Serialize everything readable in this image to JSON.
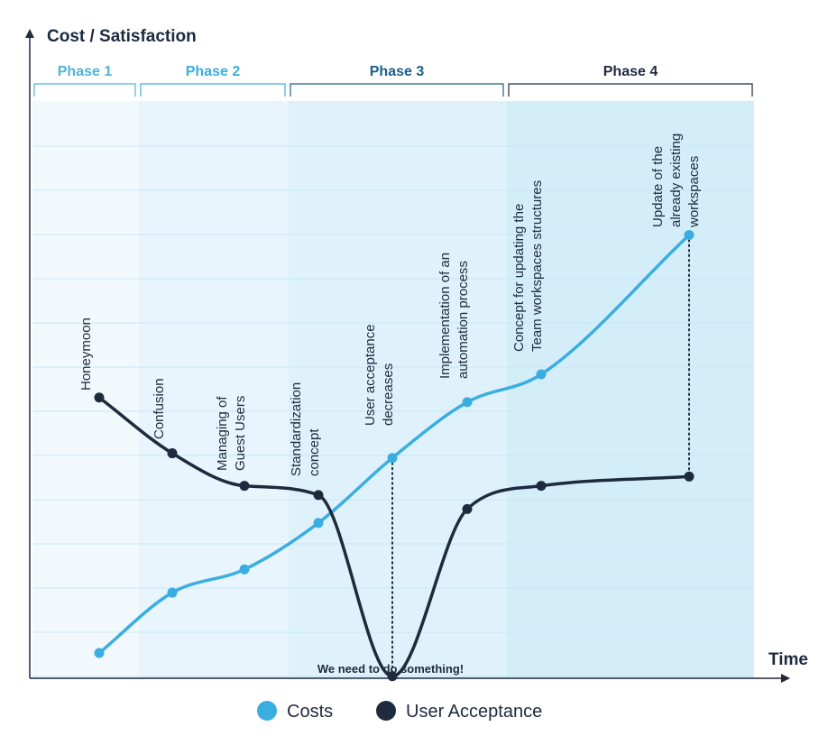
{
  "chart_data": {
    "type": "line",
    "ylabel": "Cost / Satisfaction",
    "xlabel": "Time",
    "grid": true,
    "legend_position": "bottom",
    "phases": [
      {
        "label": "Phase 1",
        "color": "#4fb3d9"
      },
      {
        "label": "Phase 2",
        "color": "#3aaee0"
      },
      {
        "label": "Phase 3",
        "color": "#1a5f8a"
      },
      {
        "label": "Phase 4",
        "color": "#1e2a3e"
      }
    ],
    "categories": [
      "Honeymoon",
      "Confusion",
      "Managing of Guest Users",
      "Standardization concept",
      "User acceptance decreases",
      "Implementation of an automation process",
      "Concept for updating the Team workspaces structures",
      "Update of the already existing workspaces"
    ],
    "annotation_labels": [
      [
        "Honeymoon"
      ],
      [
        "Confusion"
      ],
      [
        "Managing of",
        "Guest Users"
      ],
      [
        "Standardization",
        "concept"
      ],
      [
        "User acceptance",
        "decreases"
      ],
      [
        "Implementation of an",
        "automation process"
      ],
      [
        "Concept for updating the",
        "Team workspaces structures"
      ],
      [
        "Update of the",
        "already existing",
        "workspaces"
      ]
    ],
    "note": "We need to do something!",
    "series": [
      {
        "name": "Costs",
        "color": "#3aaee0",
        "values": [
          1,
          2.3,
          2.8,
          3.8,
          5.2,
          6.4,
          7.0,
          10.0
        ]
      },
      {
        "name": "User Acceptance",
        "color": "#1e2a3e",
        "values": [
          6.5,
          5.3,
          4.6,
          4.4,
          0.5,
          4.1,
          4.6,
          4.8
        ]
      }
    ]
  }
}
